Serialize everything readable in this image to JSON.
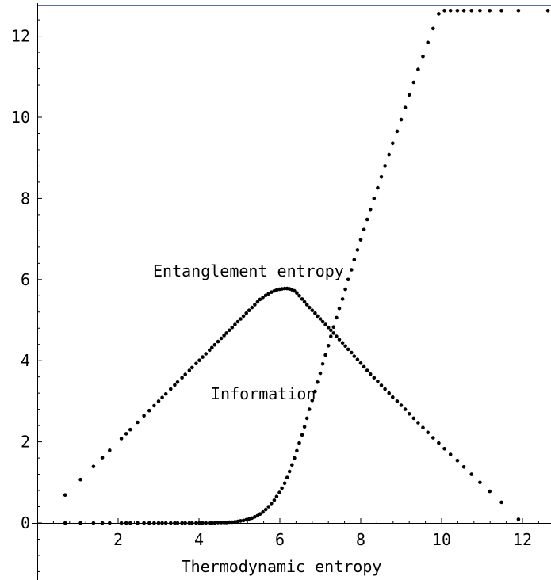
{
  "chart_data": {
    "type": "scatter",
    "title": "",
    "xlabel": "Thermodynamic entropy",
    "ylabel": "",
    "xlim": [
      0,
      12.65
    ],
    "ylim": [
      -1.4,
      12.8
    ],
    "xticks": [
      2,
      4,
      6,
      8,
      10,
      12
    ],
    "yticks": [
      0,
      2,
      4,
      6,
      8,
      10,
      12
    ],
    "marker_color": "#000000",
    "grid": false,
    "legend": "none",
    "annotations": [
      {
        "text": "Entanglement entropy",
        "x": 9.16,
        "y": 6.12
      },
      {
        "text": "Information",
        "x": 7.68,
        "y": 3.18
      }
    ],
    "series": [
      {
        "name": "",
        "x": [
          0.69,
          1.07,
          1.39,
          1.61,
          1.79,
          2.08,
          2.2,
          2.3,
          2.48,
          2.64,
          2.77,
          2.89,
          3.0,
          3.09,
          3.18,
          3.3,
          3.4,
          3.47,
          3.58,
          3.66,
          3.76,
          3.83,
          3.93,
          4.01,
          4.09,
          4.17,
          4.26,
          4.32,
          4.39,
          4.47,
          4.55,
          4.62,
          4.68,
          4.75,
          4.82,
          4.89,
          4.96,
          5.03,
          5.1,
          5.17,
          5.24,
          5.31,
          5.38,
          5.45,
          5.51,
          5.58,
          5.65,
          5.72,
          5.79,
          5.86,
          5.92,
          5.99,
          6.05,
          6.12,
          6.18,
          6.24,
          6.3,
          6.36,
          6.42,
          6.48,
          6.55,
          6.61,
          6.67,
          6.73,
          6.8,
          6.87,
          6.93,
          7.0,
          7.06,
          7.13,
          7.2,
          7.26,
          7.33,
          7.4,
          7.47,
          7.55,
          7.62,
          7.69,
          7.77,
          7.84,
          7.92,
          8.0,
          8.08,
          8.16,
          8.24,
          8.33,
          8.42,
          8.51,
          8.6,
          8.7,
          8.79,
          8.9,
          9.0,
          9.1,
          9.2,
          9.31,
          9.42,
          9.54,
          9.66,
          9.79,
          9.93,
          10.07,
          10.22,
          10.39,
          10.55,
          10.74,
          10.95,
          11.19,
          11.48,
          11.9
        ],
        "y": [
          0.69,
          1.07,
          1.39,
          1.61,
          1.79,
          2.08,
          2.2,
          2.3,
          2.48,
          2.64,
          2.77,
          2.89,
          3.0,
          3.09,
          3.18,
          3.3,
          3.4,
          3.47,
          3.58,
          3.66,
          3.76,
          3.83,
          3.93,
          4.01,
          4.09,
          4.17,
          4.26,
          4.32,
          4.39,
          4.47,
          4.55,
          4.62,
          4.68,
          4.75,
          4.82,
          4.89,
          4.96,
          5.03,
          5.1,
          5.17,
          5.24,
          5.31,
          5.38,
          5.45,
          5.51,
          5.56,
          5.61,
          5.65,
          5.69,
          5.72,
          5.74,
          5.76,
          5.77,
          5.78,
          5.78,
          5.77,
          5.75,
          5.72,
          5.67,
          5.6,
          5.52,
          5.45,
          5.38,
          5.31,
          5.24,
          5.17,
          5.1,
          5.03,
          4.96,
          4.89,
          4.82,
          4.75,
          4.68,
          4.6,
          4.52,
          4.44,
          4.36,
          4.28,
          4.2,
          4.11,
          4.03,
          3.94,
          3.85,
          3.76,
          3.67,
          3.58,
          3.49,
          3.39,
          3.3,
          3.2,
          3.1,
          3.0,
          2.9,
          2.8,
          2.69,
          2.58,
          2.47,
          2.35,
          2.23,
          2.1,
          1.97,
          1.83,
          1.69,
          1.54,
          1.38,
          1.2,
          1.0,
          0.78,
          0.51,
          0.09
        ]
      },
      {
        "name": "",
        "x": [
          0.69,
          1.07,
          1.39,
          1.61,
          1.79,
          2.08,
          2.2,
          2.3,
          2.48,
          2.64,
          2.77,
          2.89,
          3.0,
          3.09,
          3.18,
          3.3,
          3.4,
          3.47,
          3.58,
          3.66,
          3.76,
          3.83,
          3.93,
          4.01,
          4.09,
          4.17,
          4.26,
          4.32,
          4.39,
          4.47,
          4.55,
          4.62,
          4.68,
          4.75,
          4.82,
          4.89,
          4.96,
          5.03,
          5.1,
          5.17,
          5.24,
          5.31,
          5.38,
          5.45,
          5.51,
          5.58,
          5.65,
          5.72,
          5.79,
          5.86,
          5.92,
          5.99,
          6.05,
          6.12,
          6.18,
          6.24,
          6.3,
          6.36,
          6.42,
          6.48,
          6.55,
          6.61,
          6.67,
          6.73,
          6.8,
          6.87,
          6.93,
          7.0,
          7.06,
          7.13,
          7.2,
          7.26,
          7.33,
          7.4,
          7.47,
          7.55,
          7.62,
          7.69,
          7.77,
          7.84,
          7.92,
          8.0,
          8.08,
          8.16,
          8.24,
          8.33,
          8.42,
          8.51,
          8.6,
          8.7,
          8.79,
          8.9,
          9.0,
          9.1,
          9.2,
          9.31,
          9.42,
          9.54,
          9.66,
          9.79,
          9.93,
          10.07,
          10.22,
          10.39,
          10.55,
          10.74,
          10.95,
          11.19,
          11.48,
          11.9,
          12.63
        ],
        "y": [
          0,
          0,
          0,
          0,
          0,
          0,
          0,
          0,
          0,
          0,
          0,
          0,
          0,
          0,
          0,
          0,
          0,
          0,
          0,
          0,
          0,
          0,
          0,
          0,
          0,
          0,
          0,
          0,
          0,
          0.01,
          0.01,
          0.01,
          0.01,
          0.02,
          0.02,
          0.03,
          0.04,
          0.05,
          0.06,
          0.08,
          0.1,
          0.12,
          0.15,
          0.18,
          0.22,
          0.27,
          0.33,
          0.4,
          0.48,
          0.56,
          0.65,
          0.75,
          0.86,
          0.98,
          1.12,
          1.27,
          1.43,
          1.6,
          1.78,
          1.97,
          2.17,
          2.37,
          2.58,
          2.8,
          3.02,
          3.24,
          3.47,
          3.69,
          3.92,
          4.14,
          4.37,
          4.6,
          4.83,
          5.06,
          5.29,
          5.52,
          5.76,
          6.0,
          6.24,
          6.49,
          6.73,
          6.98,
          7.23,
          7.48,
          7.73,
          8.0,
          8.26,
          8.53,
          8.8,
          9.08,
          9.36,
          9.65,
          9.94,
          10.24,
          10.55,
          10.86,
          11.18,
          11.5,
          11.84,
          12.19,
          12.55,
          12.63,
          12.63,
          12.63,
          12.63,
          12.63,
          12.63,
          12.63,
          12.63,
          12.63,
          12.63
        ]
      }
    ]
  }
}
